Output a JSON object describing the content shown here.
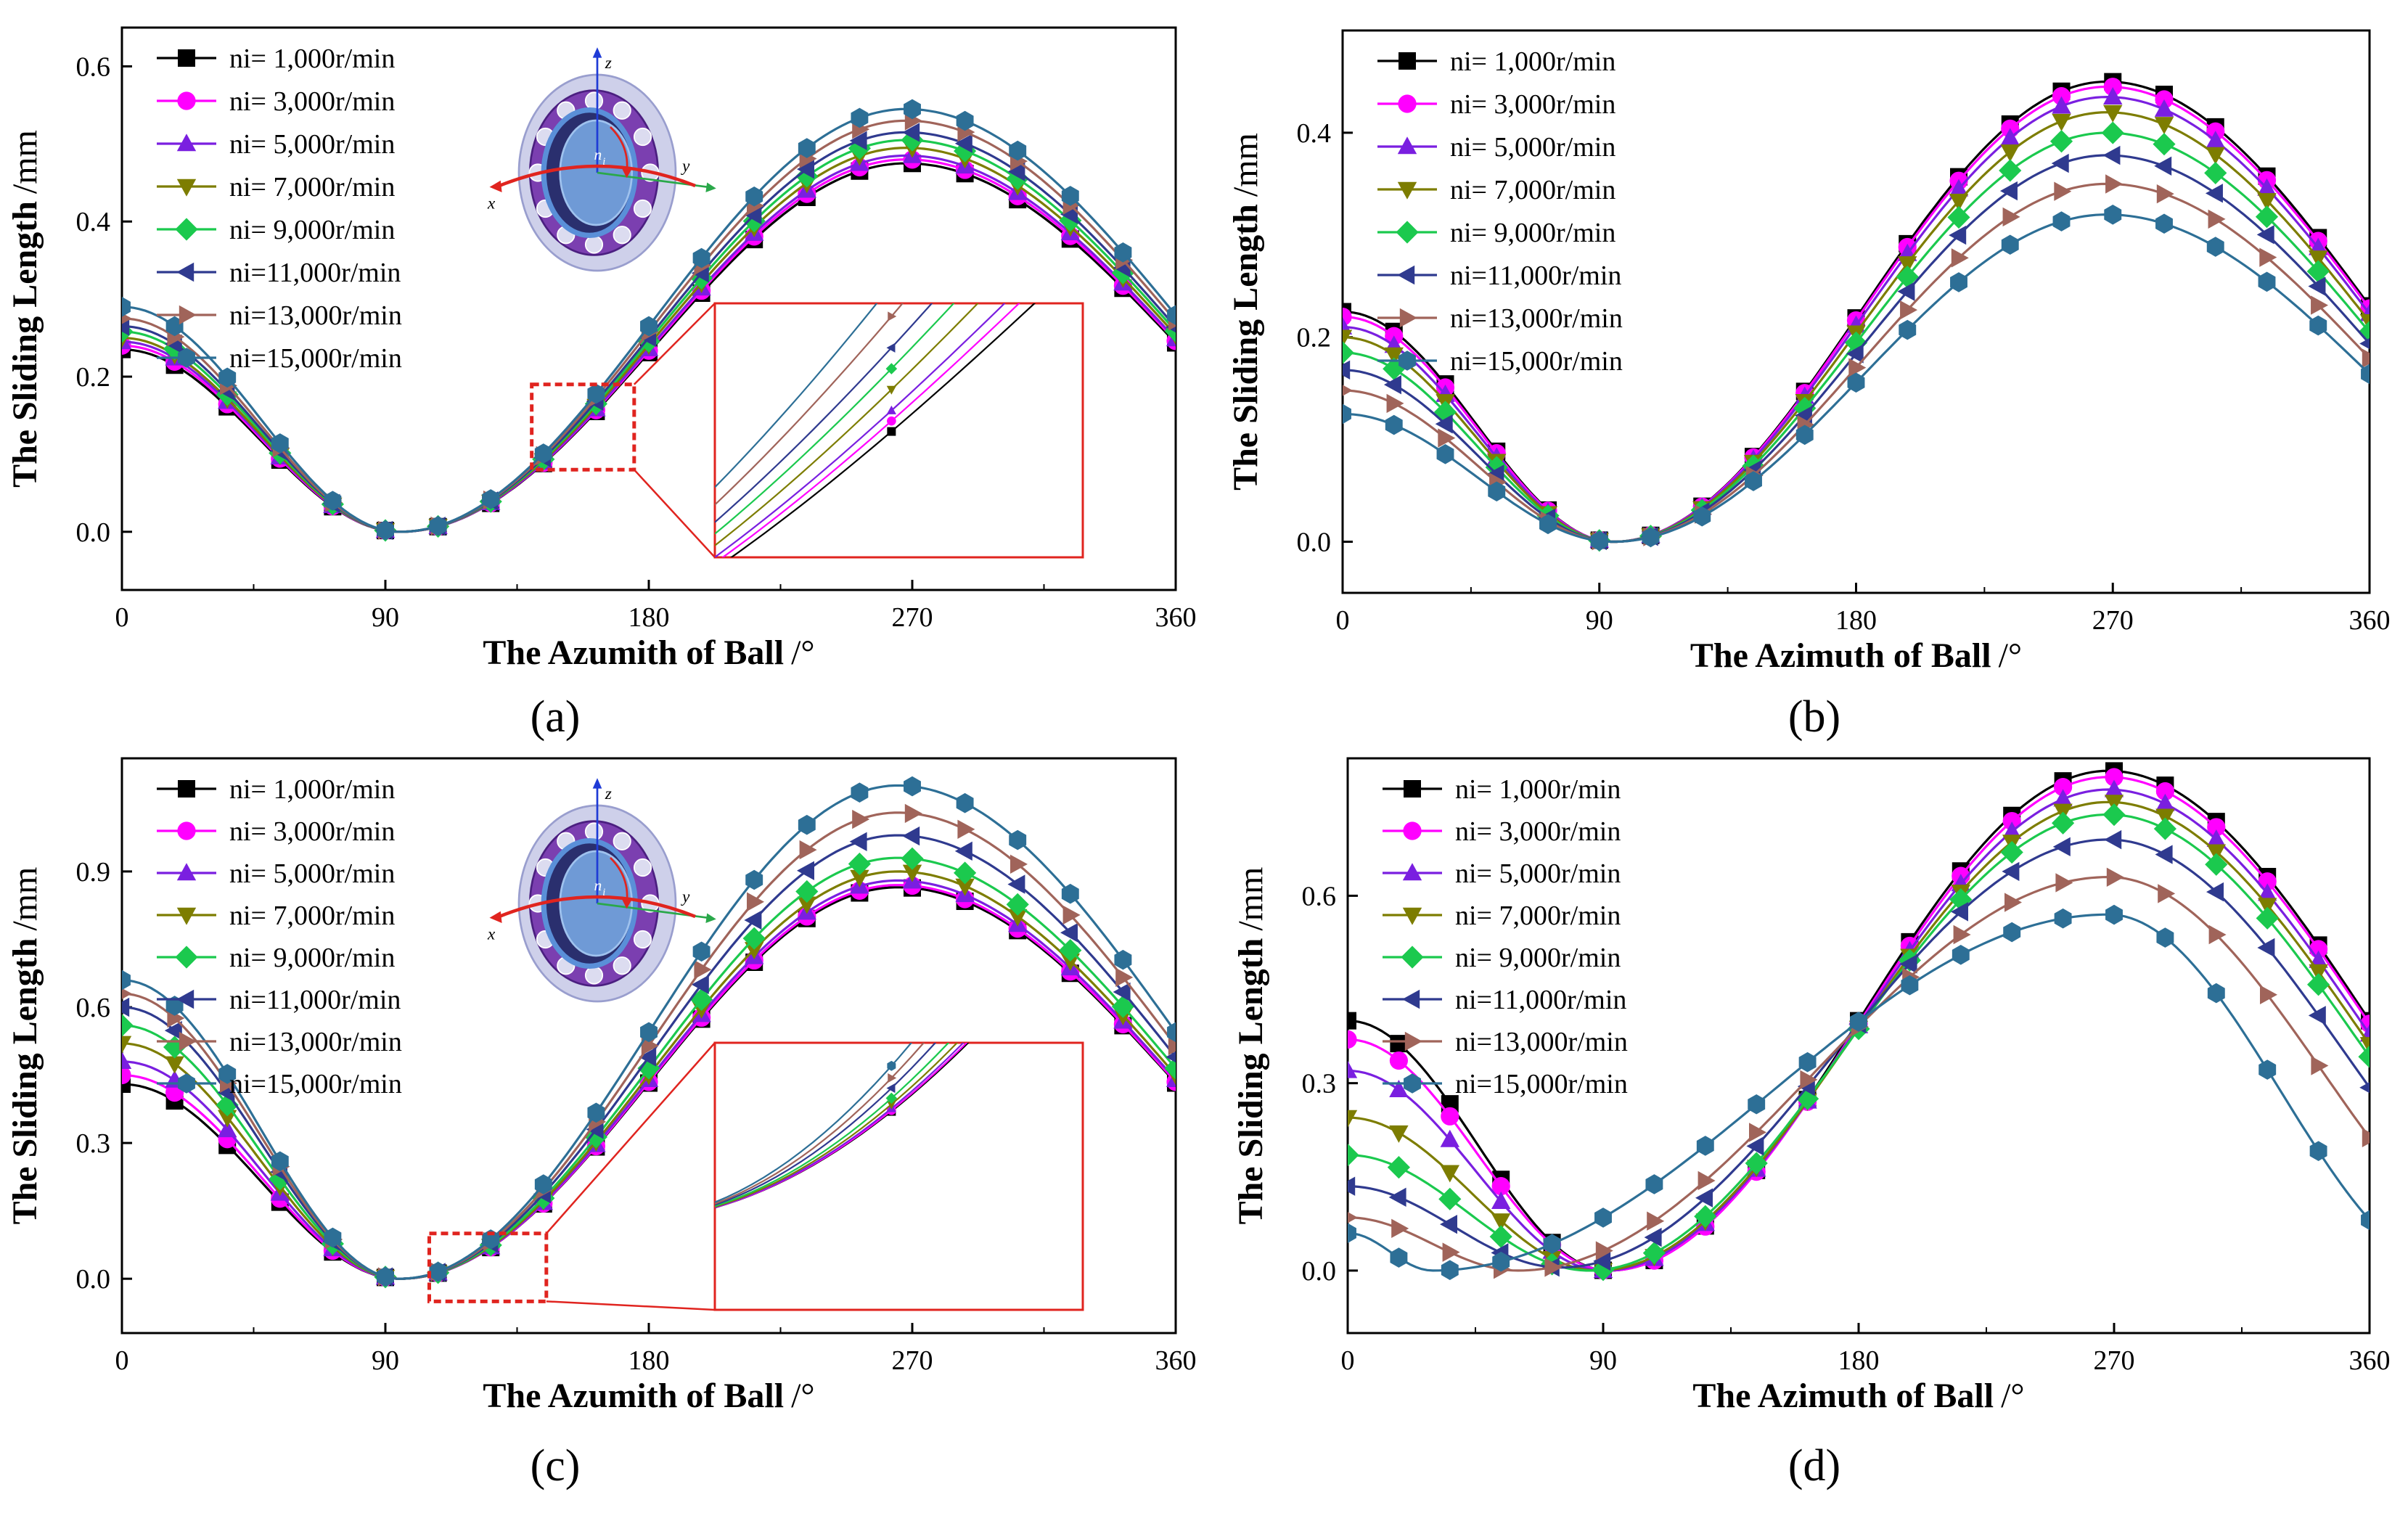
{
  "figure": {
    "panel_labels": [
      "(a)",
      "(b)",
      "(c)",
      "(d)"
    ],
    "inset_axes": {
      "x": "x",
      "y": "y",
      "z": "z",
      "speed": "n",
      "speed_sub": "i"
    }
  },
  "chart_data": [
    {
      "id": "a",
      "type": "line",
      "title": "",
      "xlabel": "The Azumith of Ball",
      "xlabel_unit": "/°",
      "ylabel": "The Sliding Length",
      "ylabel_unit": "/mm",
      "xlim": [
        0,
        360
      ],
      "ylim": [
        -0.075,
        0.65
      ],
      "xticks": [
        0,
        90,
        180,
        270,
        360
      ],
      "yticks": [
        0.0,
        0.2,
        0.4,
        0.6
      ],
      "ytick_labels": [
        "0.0",
        "0.2",
        "0.4",
        "0.6"
      ],
      "legend_location": "top-left",
      "has_bearing_inset": true,
      "has_zoom_inset": true,
      "zoom_region": [
        [
          140,
          175
        ],
        [
          0.08,
          0.19
        ]
      ],
      "model": {
        "peak_deg": 268,
        "min_deg": 95,
        "min_val": 0.0
      },
      "series": [
        {
          "name": "ni=  1,000r/min",
          "color": "#000000",
          "marker": "square",
          "peak": 0.475,
          "at0": 0.235
        },
        {
          "name": "ni=  3,000r/min",
          "color": "#ff00ff",
          "marker": "circle",
          "peak": 0.48,
          "at0": 0.24
        },
        {
          "name": "ni=  5,000r/min",
          "color": "#7a1fe0",
          "marker": "triangle-up",
          "peak": 0.485,
          "at0": 0.245
        },
        {
          "name": "ni=  7,000r/min",
          "color": "#7d7d00",
          "marker": "triangle-down",
          "peak": 0.495,
          "at0": 0.25
        },
        {
          "name": "ni=  9,000r/min",
          "color": "#1bc94e",
          "marker": "diamond",
          "peak": 0.505,
          "at0": 0.258
        },
        {
          "name": "ni=11,000r/min",
          "color": "#2f3a8f",
          "marker": "triangle-left",
          "peak": 0.515,
          "at0": 0.265
        },
        {
          "name": "ni=13,000r/min",
          "color": "#a0645a",
          "marker": "triangle-right",
          "peak": 0.53,
          "at0": 0.275
        },
        {
          "name": "ni=15,000r/min",
          "color": "#2d6f96",
          "marker": "hexagon",
          "peak": 0.545,
          "at0": 0.29
        }
      ]
    },
    {
      "id": "b",
      "type": "line",
      "title": "",
      "xlabel": "The Azimuth of Ball",
      "xlabel_unit": "/°",
      "ylabel": "The Sliding Length",
      "ylabel_unit": "/mm",
      "xlim": [
        0,
        360
      ],
      "ylim": [
        -0.05,
        0.5
      ],
      "xticks": [
        0,
        90,
        180,
        270,
        360
      ],
      "yticks": [
        0.0,
        0.2,
        0.4
      ],
      "ytick_labels": [
        "0.0",
        "0.2",
        "0.4"
      ],
      "legend_location": "top-left",
      "has_bearing_inset": false,
      "has_zoom_inset": false,
      "model": {
        "peak_deg": 268,
        "min_deg": 95,
        "min_val": 0.0
      },
      "series": [
        {
          "name": "ni=  1,000r/min",
          "color": "#000000",
          "marker": "square",
          "peak": 0.45,
          "at0": 0.225
        },
        {
          "name": "ni=  3,000r/min",
          "color": "#ff00ff",
          "marker": "circle",
          "peak": 0.445,
          "at0": 0.22
        },
        {
          "name": "ni=  5,000r/min",
          "color": "#7a1fe0",
          "marker": "triangle-up",
          "peak": 0.435,
          "at0": 0.21
        },
        {
          "name": "ni=  7,000r/min",
          "color": "#7d7d00",
          "marker": "triangle-down",
          "peak": 0.42,
          "at0": 0.2
        },
        {
          "name": "ni=  9,000r/min",
          "color": "#1bc94e",
          "marker": "diamond",
          "peak": 0.4,
          "at0": 0.185
        },
        {
          "name": "ni=11,000r/min",
          "color": "#2f3a8f",
          "marker": "triangle-left",
          "peak": 0.378,
          "at0": 0.168
        },
        {
          "name": "ni=13,000r/min",
          "color": "#a0645a",
          "marker": "triangle-right",
          "peak": 0.35,
          "at0": 0.148
        },
        {
          "name": "ni=15,000r/min",
          "color": "#2d6f96",
          "marker": "hexagon",
          "peak": 0.32,
          "at0": 0.125
        }
      ]
    },
    {
      "id": "c",
      "type": "line",
      "title": "",
      "xlabel": "The Azumith of Ball",
      "xlabel_unit": "/°",
      "ylabel": "The Sliding Length",
      "ylabel_unit": "/mm",
      "xlim": [
        0,
        360
      ],
      "ylim": [
        -0.12,
        1.15
      ],
      "xticks": [
        0,
        90,
        180,
        270,
        360
      ],
      "yticks": [
        0.0,
        0.3,
        0.6,
        0.9
      ],
      "ytick_labels": [
        "0.0",
        "0.3",
        "0.6",
        "0.9"
      ],
      "legend_location": "top-left",
      "has_bearing_inset": true,
      "has_zoom_inset": true,
      "zoom_region": [
        [
          105,
          145
        ],
        [
          -0.05,
          0.1
        ]
      ],
      "model": {
        "peak_deg": 265,
        "min_deg": 95,
        "min_val": 0.0
      },
      "series": [
        {
          "name": "ni=  1,000r/min",
          "color": "#000000",
          "marker": "square",
          "peak": 0.865,
          "at0": 0.43
        },
        {
          "name": "ni=  3,000r/min",
          "color": "#ff00ff",
          "marker": "circle",
          "peak": 0.87,
          "at0": 0.45
        },
        {
          "name": "ni=  5,000r/min",
          "color": "#7a1fe0",
          "marker": "triangle-up",
          "peak": 0.88,
          "at0": 0.48
        },
        {
          "name": "ni=  7,000r/min",
          "color": "#7d7d00",
          "marker": "triangle-down",
          "peak": 0.9,
          "at0": 0.52
        },
        {
          "name": "ni=  9,000r/min",
          "color": "#1bc94e",
          "marker": "diamond",
          "peak": 0.93,
          "at0": 0.56
        },
        {
          "name": "ni=11,000r/min",
          "color": "#2f3a8f",
          "marker": "triangle-left",
          "peak": 0.98,
          "at0": 0.6
        },
        {
          "name": "ni=13,000r/min",
          "color": "#a0645a",
          "marker": "triangle-right",
          "peak": 1.03,
          "at0": 0.63
        },
        {
          "name": "ni=15,000r/min",
          "color": "#2d6f96",
          "marker": "hexagon",
          "peak": 1.09,
          "at0": 0.66
        }
      ]
    },
    {
      "id": "d",
      "type": "line",
      "title": "",
      "xlabel": "The Azimuth of Ball",
      "xlabel_unit": "/°",
      "ylabel": "The Sliding Length",
      "ylabel_unit": "/mm",
      "xlim": [
        0,
        360
      ],
      "ylim": [
        -0.1,
        0.82
      ],
      "xticks": [
        0,
        90,
        180,
        270,
        360
      ],
      "yticks": [
        0.0,
        0.3,
        0.6
      ],
      "ytick_labels": [
        "0.0",
        "0.3",
        "0.6"
      ],
      "legend_location": "top-left",
      "has_bearing_inset": false,
      "has_zoom_inset": false,
      "model": {
        "peak_deg": 268,
        "min_deg": 90,
        "min_val": 0.0
      },
      "series": [
        {
          "name": "ni=  1,000r/min",
          "color": "#000000",
          "marker": "square",
          "peak": 0.8,
          "at0": 0.4,
          "min_val": 0.0,
          "min_deg": 92
        },
        {
          "name": "ni=  3,000r/min",
          "color": "#ff00ff",
          "marker": "circle",
          "peak": 0.79,
          "at0": 0.37,
          "min_val": 0.0,
          "min_deg": 92
        },
        {
          "name": "ni=  5,000r/min",
          "color": "#7a1fe0",
          "marker": "triangle-up",
          "peak": 0.77,
          "at0": 0.32,
          "min_val": 0.0,
          "min_deg": 90
        },
        {
          "name": "ni=  7,000r/min",
          "color": "#7d7d00",
          "marker": "triangle-down",
          "peak": 0.75,
          "at0": 0.245,
          "min_val": 0.0,
          "min_deg": 88
        },
        {
          "name": "ni=  9,000r/min",
          "color": "#1bc94e",
          "marker": "diamond",
          "peak": 0.73,
          "at0": 0.185,
          "min_val": 0.0,
          "min_deg": 85
        },
        {
          "name": "ni=11,000r/min",
          "color": "#2f3a8f",
          "marker": "triangle-left",
          "peak": 0.69,
          "at0": 0.135,
          "min_val": 0.005,
          "min_deg": 75
        },
        {
          "name": "ni=13,000r/min",
          "color": "#a0645a",
          "marker": "triangle-right",
          "peak": 0.63,
          "at0": 0.085,
          "min_val": 0.0,
          "min_deg": 60
        },
        {
          "name": "ni=15,000r/min",
          "color": "#2d6f96",
          "marker": "hexagon",
          "peak": 0.57,
          "at0": 0.06,
          "min_val": 0.0,
          "min_deg": 30
        }
      ]
    }
  ]
}
